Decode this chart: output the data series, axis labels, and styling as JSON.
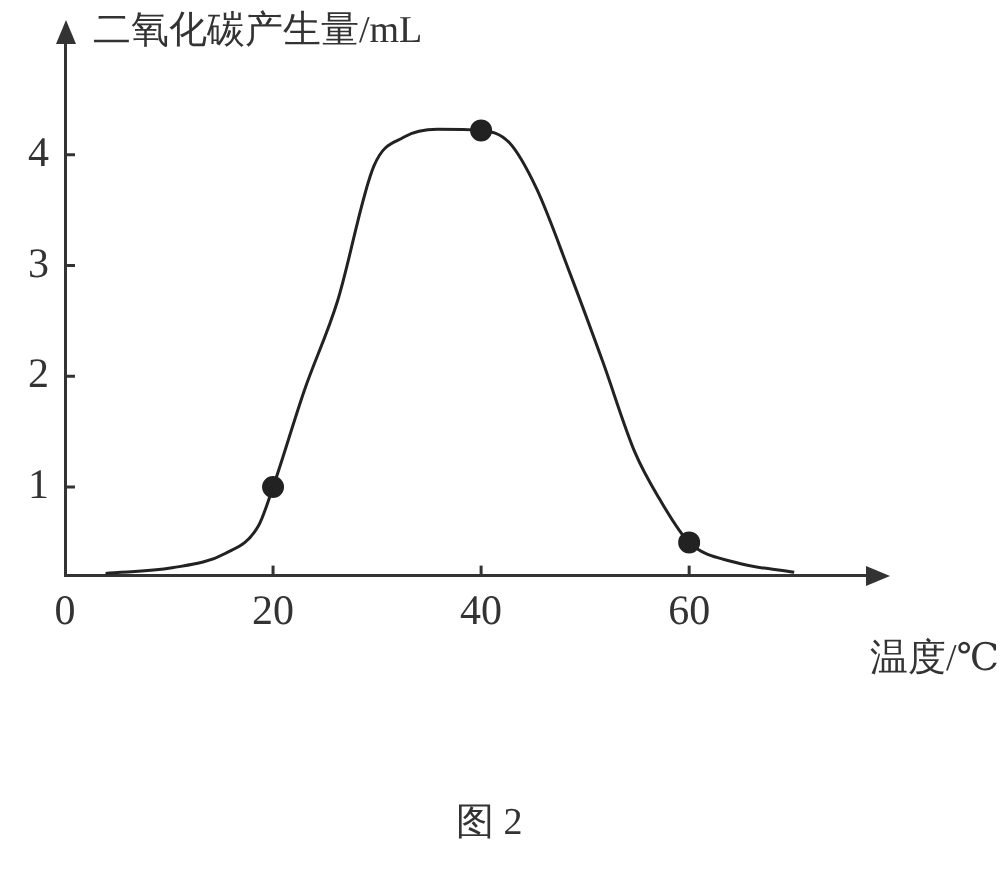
{
  "chart_data": {
    "type": "line",
    "xlabel": "温度/℃",
    "ylabel": "二氧化碳产生量/mL",
    "annotations": [
      "图 2"
    ],
    "xlim": [
      0,
      77
    ],
    "ylim": [
      0.2,
      5
    ],
    "xticks": [
      0,
      20,
      40,
      60
    ],
    "yticks": [
      1,
      2,
      3,
      4
    ],
    "grid": false,
    "legend": false,
    "series": [
      {
        "color": "#222222",
        "marker": "none",
        "x": [
          3.9,
          10.3,
          15.4,
          18.6,
          20,
          23,
          26.2,
          29.7,
          32.6,
          35.8,
          40,
          42.7,
          45.3,
          48.5,
          51.7,
          54.8,
          57.1,
          60,
          64.4,
          70.1
        ],
        "values": [
          0.22,
          0.27,
          0.4,
          0.65,
          1.0,
          1.87,
          2.68,
          3.9,
          4.16,
          4.23,
          4.22,
          4.11,
          3.7,
          2.94,
          2.13,
          1.31,
          0.9,
          0.5,
          0.32,
          0.23
        ]
      },
      {
        "type": "scatter",
        "color": "#222222",
        "marker": "circle",
        "x": [
          20,
          40,
          60
        ],
        "values": [
          1.0,
          4.22,
          0.5
        ]
      }
    ]
  }
}
